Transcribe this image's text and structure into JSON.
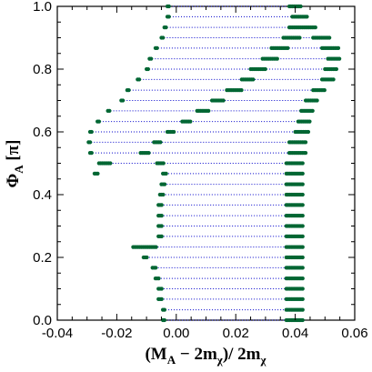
{
  "chart_data": {
    "type": "scatter",
    "title": "",
    "xlabel": "(M_A - 2m_chi)/ 2m_chi",
    "ylabel": "Phi_A [pi]",
    "xlabel_parts": {
      "open": "(M",
      "sub_a": "A",
      "minus": " − 2m",
      "sub_chi": "χ",
      "close": ")/ 2m",
      "sub_chi2": "χ"
    },
    "ylabel_parts": {
      "symbol": "Φ",
      "sub": "A",
      "unit": " [π]"
    },
    "xlim": [
      -0.04,
      0.06
    ],
    "ylim": [
      0.0,
      1.0
    ],
    "xticks": [
      -0.04,
      -0.02,
      0.0,
      0.02,
      0.04,
      0.06
    ],
    "xtick_labels": [
      "-0.04",
      "-0.02",
      "0.00",
      "0.02",
      "0.04",
      "0.06"
    ],
    "yticks": [
      0.0,
      0.2,
      0.4,
      0.6,
      0.8,
      1.0
    ],
    "ytick_labels": [
      "0.0",
      "0.2",
      "0.4",
      "0.6",
      "0.8",
      "1.0"
    ],
    "grid": false,
    "legend": "none",
    "colors": {
      "allowed_points": "#006633",
      "scan_line": "#0000cc",
      "axes": "#000000"
    },
    "phi_step": 0.0333,
    "rows": [
      {
        "phi": 0.0,
        "scan": [
          -0.0045,
          0.0425
        ],
        "segments": [
          [
            -0.0045,
            -0.0035
          ],
          [
            0.037,
            0.0425
          ]
        ]
      },
      {
        "phi": 0.033,
        "scan": [
          -0.0045,
          0.0425
        ],
        "segments": [
          [
            -0.0045,
            -0.0035
          ],
          [
            0.037,
            0.0425
          ]
        ]
      },
      {
        "phi": 0.067,
        "scan": [
          -0.006,
          0.0425
        ],
        "segments": [
          [
            -0.006,
            -0.0045
          ],
          [
            0.037,
            0.0425
          ]
        ]
      },
      {
        "phi": 0.1,
        "scan": [
          -0.006,
          0.0425
        ],
        "segments": [
          [
            -0.006,
            -0.0045
          ],
          [
            0.037,
            0.0425
          ]
        ]
      },
      {
        "phi": 0.133,
        "scan": [
          -0.007,
          0.0425
        ],
        "segments": [
          [
            -0.007,
            -0.0055
          ],
          [
            0.037,
            0.0425
          ]
        ]
      },
      {
        "phi": 0.167,
        "scan": [
          -0.008,
          0.043
        ],
        "segments": [
          [
            -0.008,
            -0.0065
          ],
          [
            0.037,
            0.043
          ]
        ]
      },
      {
        "phi": 0.2,
        "scan": [
          -0.011,
          0.043
        ],
        "segments": [
          [
            -0.011,
            -0.0095
          ],
          [
            0.037,
            0.043
          ]
        ]
      },
      {
        "phi": 0.233,
        "scan": [
          -0.0145,
          0.043
        ],
        "segments": [
          [
            -0.0145,
            -0.0065
          ],
          [
            0.037,
            0.043
          ]
        ]
      },
      {
        "phi": 0.267,
        "scan": [
          -0.006,
          0.043
        ],
        "segments": [
          [
            -0.006,
            -0.0045
          ],
          [
            0.037,
            0.043
          ]
        ]
      },
      {
        "phi": 0.3,
        "scan": [
          -0.006,
          0.043
        ],
        "segments": [
          [
            -0.006,
            -0.0045
          ],
          [
            0.037,
            0.043
          ]
        ]
      },
      {
        "phi": 0.333,
        "scan": [
          -0.006,
          0.043
        ],
        "segments": [
          [
            -0.006,
            -0.0045
          ],
          [
            0.037,
            0.043
          ]
        ]
      },
      {
        "phi": 0.367,
        "scan": [
          -0.006,
          0.043
        ],
        "segments": [
          [
            -0.006,
            -0.0045
          ],
          [
            0.037,
            0.043
          ]
        ]
      },
      {
        "phi": 0.4,
        "scan": [
          -0.0055,
          0.043
        ],
        "segments": [
          [
            -0.0055,
            -0.004
          ],
          [
            0.037,
            0.043
          ]
        ]
      },
      {
        "phi": 0.433,
        "scan": [
          -0.005,
          0.043
        ],
        "segments": [
          [
            -0.005,
            -0.0035
          ],
          [
            0.037,
            0.043
          ]
        ]
      },
      {
        "phi": 0.467,
        "scan": [
          -0.0045,
          0.043
        ],
        "segments": [
          [
            -0.0045,
            -0.003
          ],
          [
            0.037,
            0.043
          ]
        ]
      },
      {
        "phi": 0.467,
        "scan": [
          -0.0275,
          -0.026
        ],
        "segments": [
          [
            -0.0275,
            -0.026
          ]
        ]
      },
      {
        "phi": 0.5,
        "scan": [
          -0.026,
          0.043
        ],
        "segments": [
          [
            -0.026,
            -0.022
          ],
          [
            -0.0065,
            -0.004
          ],
          [
            0.037,
            0.043
          ]
        ]
      },
      {
        "phi": 0.533,
        "scan": [
          -0.029,
          0.0435
        ],
        "segments": [
          [
            -0.029,
            -0.028
          ],
          [
            -0.012,
            -0.009
          ],
          [
            0.038,
            0.0435
          ]
        ]
      },
      {
        "phi": 0.567,
        "scan": [
          -0.0295,
          0.044
        ],
        "segments": [
          [
            -0.0295,
            -0.0285
          ],
          [
            -0.0075,
            -0.005
          ],
          [
            0.038,
            0.044
          ]
        ]
      },
      {
        "phi": 0.6,
        "scan": [
          -0.029,
          0.0445
        ],
        "segments": [
          [
            -0.029,
            -0.028
          ],
          [
            -0.003,
            -0.0005
          ],
          [
            0.04,
            0.0445
          ]
        ]
      },
      {
        "phi": 0.633,
        "scan": [
          -0.0265,
          0.045
        ],
        "segments": [
          [
            -0.0265,
            -0.0255
          ],
          [
            0.002,
            0.005
          ],
          [
            0.041,
            0.045
          ]
        ]
      },
      {
        "phi": 0.667,
        "scan": [
          -0.023,
          0.046
        ],
        "segments": [
          [
            -0.023,
            -0.022
          ],
          [
            0.007,
            0.011
          ],
          [
            0.042,
            0.046
          ]
        ]
      },
      {
        "phi": 0.7,
        "scan": [
          -0.0185,
          0.0475
        ],
        "segments": [
          [
            -0.0185,
            -0.0175
          ],
          [
            0.012,
            0.016
          ],
          [
            0.0435,
            0.0475
          ]
        ]
      },
      {
        "phi": 0.733,
        "scan": [
          -0.0165,
          0.05
        ],
        "segments": [
          [
            -0.0165,
            -0.0155
          ],
          [
            0.017,
            0.022
          ],
          [
            0.046,
            0.05
          ]
        ]
      },
      {
        "phi": 0.767,
        "scan": [
          -0.013,
          0.053
        ],
        "segments": [
          [
            -0.013,
            -0.012
          ],
          [
            0.022,
            0.026
          ],
          [
            0.049,
            0.053
          ]
        ]
      },
      {
        "phi": 0.8,
        "scan": [
          -0.01,
          0.054
        ],
        "segments": [
          [
            -0.01,
            -0.009
          ],
          [
            0.025,
            0.03
          ],
          [
            0.05,
            0.054
          ]
        ]
      },
      {
        "phi": 0.833,
        "scan": [
          -0.009,
          0.055
        ],
        "segments": [
          [
            -0.009,
            -0.008
          ],
          [
            0.029,
            0.034
          ],
          [
            0.051,
            0.055
          ]
        ]
      },
      {
        "phi": 0.867,
        "scan": [
          -0.007,
          0.0545
        ],
        "segments": [
          [
            -0.007,
            -0.006
          ],
          [
            0.032,
            0.038
          ],
          [
            0.049,
            0.0545
          ]
        ]
      },
      {
        "phi": 0.9,
        "scan": [
          -0.005,
          0.052
        ],
        "segments": [
          [
            -0.005,
            -0.004
          ],
          [
            0.036,
            0.042
          ],
          [
            0.046,
            0.052
          ]
        ]
      },
      {
        "phi": 0.933,
        "scan": [
          -0.004,
          0.047
        ],
        "segments": [
          [
            -0.004,
            -0.003
          ],
          [
            0.038,
            0.047
          ]
        ]
      },
      {
        "phi": 0.967,
        "scan": [
          -0.003,
          0.044
        ],
        "segments": [
          [
            -0.003,
            -0.002
          ],
          [
            0.039,
            0.044
          ]
        ]
      },
      {
        "phi": 1.0,
        "scan": [
          -0.003,
          0.042
        ],
        "segments": [
          [
            -0.003,
            -0.002
          ],
          [
            0.038,
            0.042
          ]
        ]
      }
    ]
  }
}
